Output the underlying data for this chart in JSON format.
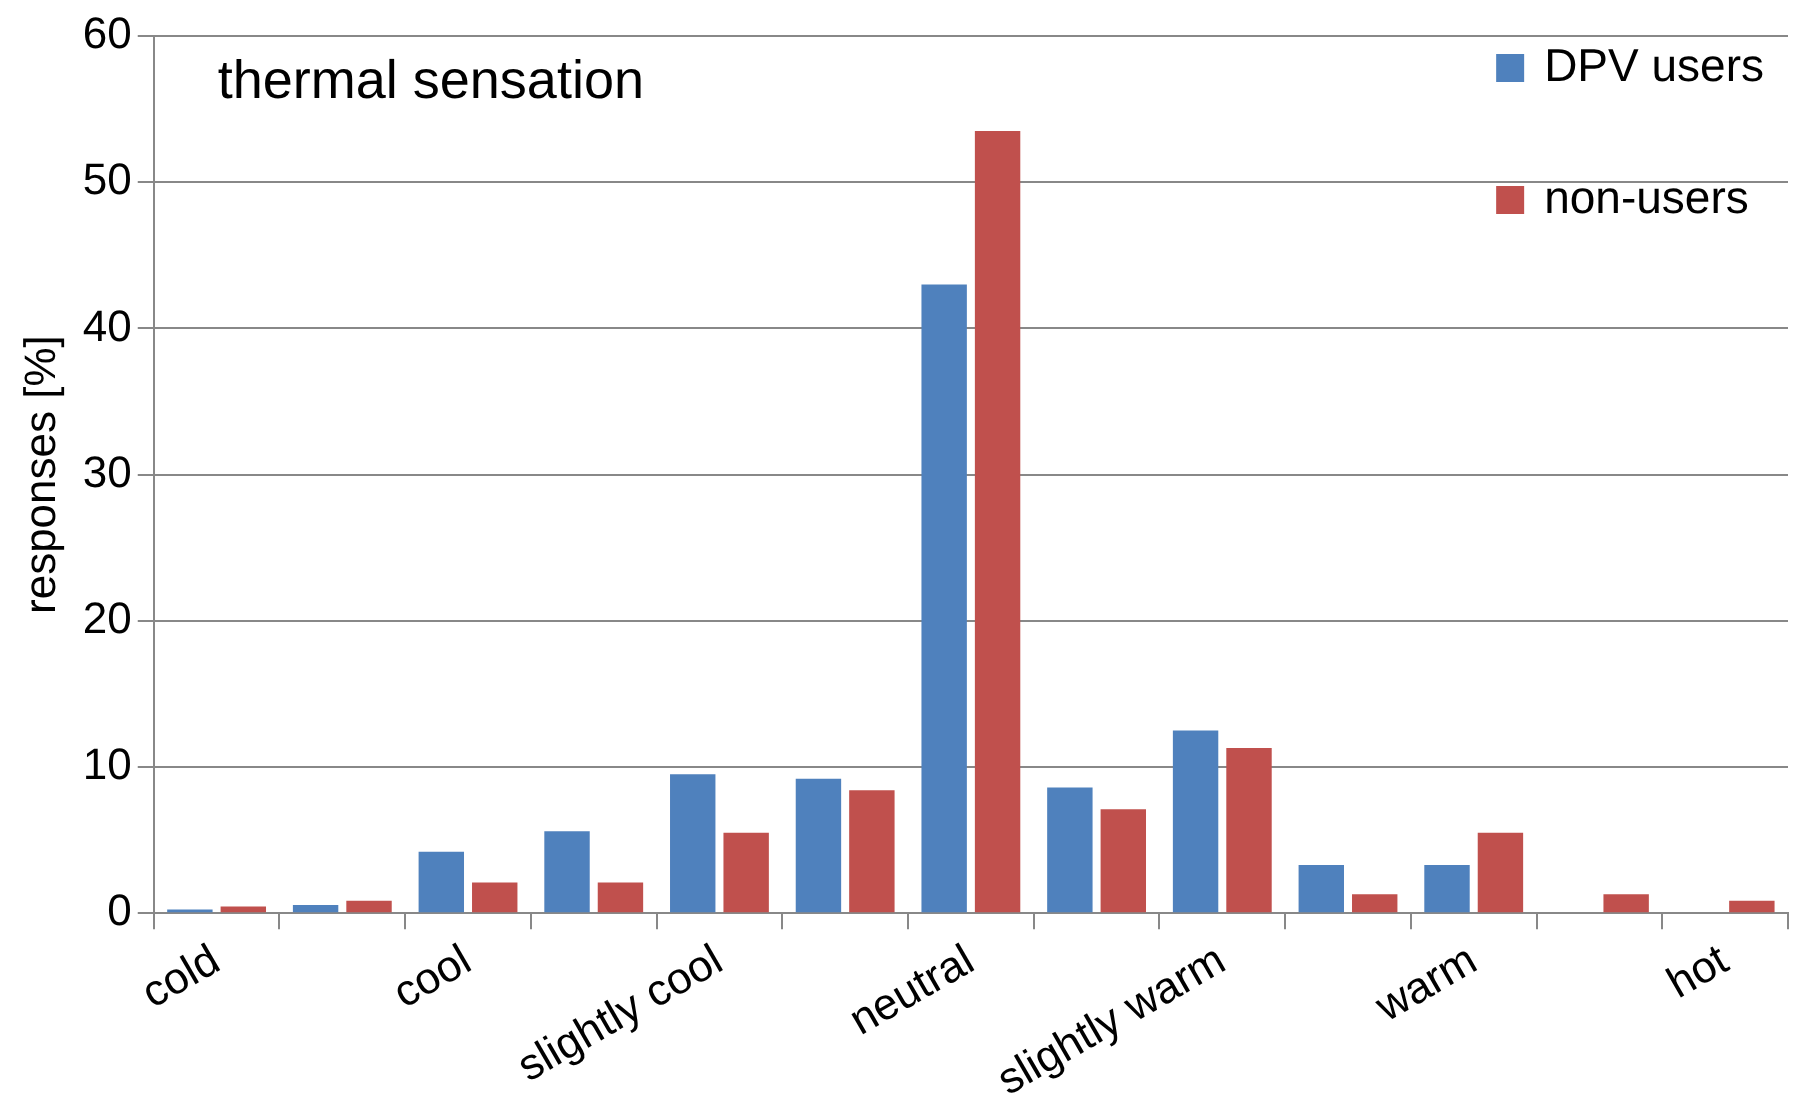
{
  "chart_data": {
    "type": "bar",
    "title": "thermal sensation",
    "ylabel": "responses [%]",
    "categories": [
      "cold",
      null,
      "cool",
      null,
      "slightly cool",
      null,
      "neutral",
      null,
      "slightly warm",
      null,
      "warm",
      null,
      "hot"
    ],
    "series": [
      {
        "name": "DPV users",
        "color": "#4f81bd",
        "values": [
          0.25,
          0.55,
          4.2,
          5.6,
          9.5,
          9.2,
          43,
          8.6,
          12.5,
          3.3,
          3.3,
          0,
          0
        ]
      },
      {
        "name": "non-users",
        "color": "#c0504d",
        "values": [
          0.45,
          0.85,
          2.1,
          2.1,
          5.5,
          8.4,
          53.5,
          7.1,
          11.3,
          1.3,
          5.5,
          1.3,
          0.85
        ]
      }
    ],
    "ylim": [
      0,
      60
    ],
    "yticks": [
      0,
      10,
      20,
      30,
      40,
      50,
      60
    ],
    "grid": "y",
    "legend": "top right"
  }
}
